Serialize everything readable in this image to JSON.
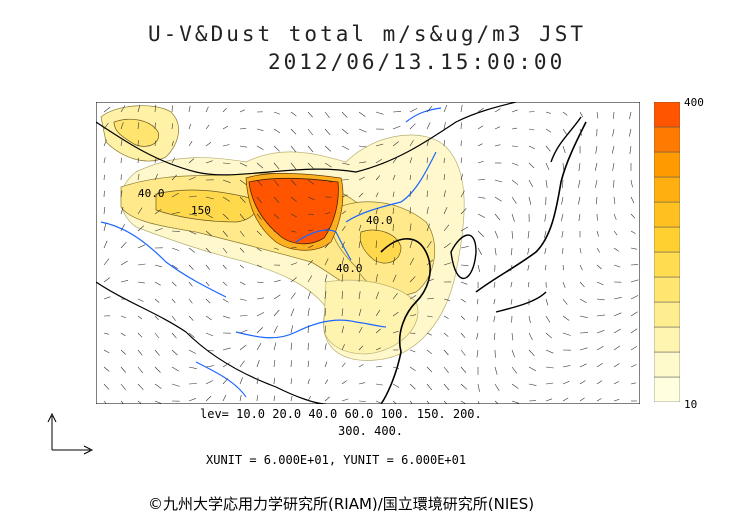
{
  "title": {
    "line1": "U-V&Dust total m/s&ug/m3 JST",
    "line2": "2012/06/13.15:00:00"
  },
  "colorbar": {
    "max_label": "400",
    "min_label": "10",
    "colors": [
      "#ffffe0",
      "#fffacc",
      "#fff4b0",
      "#ffee90",
      "#ffe670",
      "#ffdc50",
      "#ffd030",
      "#ffc020",
      "#ffb010",
      "#ff9a00",
      "#ff7a00",
      "#ff5500"
    ]
  },
  "map_labels": [
    {
      "text": "40.0",
      "name": "contour-label-west"
    },
    {
      "text": "150",
      "name": "contour-label-west-core"
    },
    {
      "text": "40.0",
      "name": "contour-label-east"
    },
    {
      "text": "40.0",
      "name": "contour-label-south"
    }
  ],
  "levels": {
    "line1": "lev= 10.0 20.0 40.0 60.0 100. 150. 200.",
    "line2": "300. 400."
  },
  "units": "XUNIT = 6.000E+01, YUNIT = 6.000E+01",
  "copyright": "©九州大学応用力学研究所(RIAM)/国立環境研究所(NIES)",
  "colors": {
    "high_dust": "#ff5500",
    "rivers": "#1a66ff",
    "coast": "#000000",
    "light_dust": "#fff7c2"
  }
}
